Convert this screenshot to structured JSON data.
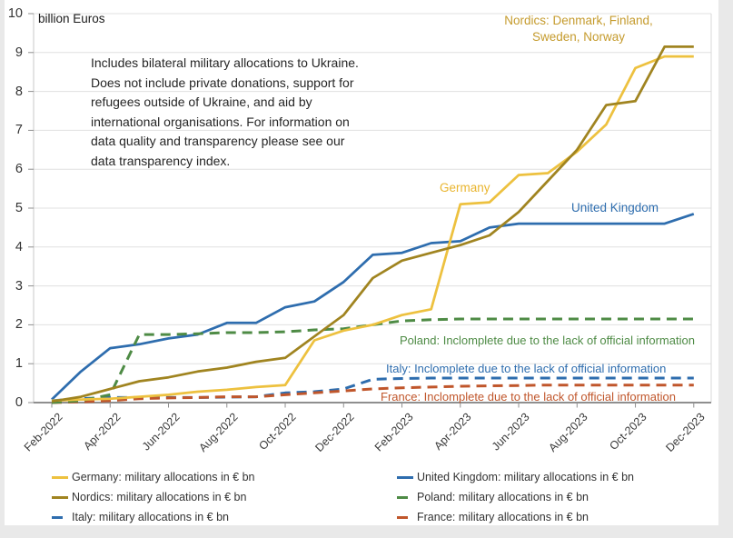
{
  "page": {
    "y_axis_title": "billion Euros"
  },
  "annotation": {
    "text": "Includes bilateral military allocations to Ukraine.\nDoes not include private donations, support for\nrefugees outside of Ukraine, and aid by\ninternational organisations.  For information on\ndata quality and transparency please see our\ndata transparency index."
  },
  "labels": {
    "nordics": {
      "line1": "Nordics: Denmark, Finland,",
      "line2": "Sweden, Norway",
      "color": "#C59B2D"
    },
    "germany": {
      "text": "Germany",
      "color": "#E9B52F"
    },
    "uk": {
      "text": "United Kingdom",
      "color": "#2E6DAE"
    },
    "poland_note": {
      "text": "Poland: Inclomplete due to the lack of official information",
      "color": "#4E8B45"
    },
    "italy_note": {
      "text": "Italy: Inclomplete due to the lack of official information",
      "color": "#2E6DAE"
    },
    "france_note": {
      "text": "France: Inclomplete due to the lack of official information",
      "color": "#C0562B"
    }
  },
  "legend": {
    "items": [
      {
        "label": "Germany: military allocations in € bn",
        "color": "#EDC13F",
        "dashed": false
      },
      {
        "label": "Nordics: military allocations in € bn",
        "color": "#A08420",
        "dashed": false
      },
      {
        "label": "Italy: military allocations in € bn",
        "color": "#2E6DAE",
        "dashed": true
      },
      {
        "label": "United Kingdom: military allocations in € bn",
        "color": "#2E6DAE",
        "dashed": false
      },
      {
        "label": "Poland: military allocations in € bn",
        "color": "#4E8B45",
        "dashed": true
      },
      {
        "label": "France: military allocations in € bn",
        "color": "#C0562B",
        "dashed": true
      }
    ]
  },
  "chart_data": {
    "type": "line",
    "title": "billion Euros",
    "ylabel": "billion Euros",
    "ylim": [
      0,
      10
    ],
    "y_ticks": [
      0,
      1,
      2,
      3,
      4,
      5,
      6,
      7,
      8,
      9,
      10
    ],
    "grid": true,
    "legend_position": "bottom",
    "x_categories": [
      "Feb-2022",
      "Mar-2022",
      "Apr-2022",
      "May-2022",
      "Jun-2022",
      "Jul-2022",
      "Aug-2022",
      "Sep-2022",
      "Oct-2022",
      "Nov-2022",
      "Dec-2022",
      "Jan-2023",
      "Feb-2023",
      "Mar-2023",
      "Apr-2023",
      "May-2023",
      "Jun-2023",
      "Jul-2023",
      "Aug-2023",
      "Sep-2023",
      "Oct-2023",
      "Nov-2023",
      "Dec-2023"
    ],
    "x_tick_labels": [
      "Feb-2022",
      "Apr-2022",
      "Jun-2022",
      "Aug-2022",
      "Oct-2022",
      "Dec-2022",
      "Feb-2023",
      "Apr-2023",
      "Jun-2023",
      "Aug-2023",
      "Oct-2023",
      "Dec-2023"
    ],
    "series": [
      {
        "name": "Italy: military allocations in € bn",
        "key": "italy",
        "color": "#2E6DAE",
        "style": "dashed",
        "values": [
          0.05,
          0.1,
          0.13,
          0.13,
          0.13,
          0.13,
          0.14,
          0.15,
          0.25,
          0.28,
          0.35,
          0.6,
          0.62,
          0.63,
          0.63,
          0.63,
          0.63,
          0.63,
          0.63,
          0.63,
          0.63,
          0.63,
          0.63
        ]
      },
      {
        "name": "France: military allocations in € bn",
        "key": "france",
        "color": "#C0562B",
        "style": "dashed",
        "values": [
          0.0,
          0.02,
          0.05,
          0.1,
          0.12,
          0.13,
          0.15,
          0.15,
          0.2,
          0.25,
          0.3,
          0.35,
          0.38,
          0.4,
          0.42,
          0.43,
          0.44,
          0.45,
          0.45,
          0.45,
          0.45,
          0.45,
          0.45
        ]
      },
      {
        "name": "United Kingdom: military allocations in € bn",
        "key": "uk",
        "color": "#2E6DAE",
        "style": "solid",
        "values": [
          0.08,
          0.8,
          1.4,
          1.5,
          1.65,
          1.75,
          2.05,
          2.05,
          2.45,
          2.6,
          3.1,
          3.8,
          3.85,
          4.1,
          4.15,
          4.5,
          4.6,
          4.6,
          4.6,
          4.6,
          4.6,
          4.6,
          4.85
        ]
      },
      {
        "name": "Poland: military allocations in € bn",
        "key": "poland",
        "color": "#4E8B45",
        "style": "dashed",
        "values": [
          0.0,
          0.05,
          0.2,
          1.75,
          1.75,
          1.77,
          1.8,
          1.8,
          1.82,
          1.87,
          1.9,
          2.0,
          2.1,
          2.13,
          2.15,
          2.15,
          2.15,
          2.15,
          2.15,
          2.15,
          2.15,
          2.15,
          2.15
        ]
      },
      {
        "name": "Germany: military allocations in € bn",
        "key": "germany",
        "color": "#EDC13F",
        "style": "solid",
        "values": [
          0.05,
          0.08,
          0.1,
          0.15,
          0.2,
          0.28,
          0.33,
          0.4,
          0.45,
          1.6,
          1.85,
          2.0,
          2.25,
          2.4,
          5.1,
          5.15,
          5.85,
          5.9,
          6.45,
          7.15,
          8.6,
          8.9,
          8.9
        ]
      },
      {
        "name": "Nordics: military allocations in € bn",
        "key": "nordics",
        "color": "#A08420",
        "style": "solid",
        "values": [
          0.03,
          0.15,
          0.35,
          0.55,
          0.65,
          0.8,
          0.9,
          1.05,
          1.15,
          1.7,
          2.25,
          3.2,
          3.65,
          3.85,
          4.05,
          4.3,
          4.9,
          5.7,
          6.5,
          7.65,
          7.75,
          9.15,
          9.15
        ]
      }
    ]
  }
}
